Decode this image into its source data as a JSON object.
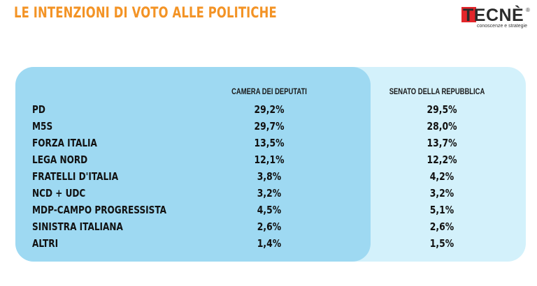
{
  "header": {
    "title": "LE INTENZIONI DI VOTO ALLE POLITICHE"
  },
  "logo": {
    "name": "TECNÈ",
    "tagline": "conoscenze e strategie",
    "mark": "®",
    "accent": "#e3262b"
  },
  "colors": {
    "title": "#f39325",
    "camera_panel": "#9ed9f2",
    "senato_panel": "#d3f1fb"
  },
  "table": {
    "columns": [
      "CAMERA DEI DEPUTATI",
      "SENATO DELLA REPUBBLICA"
    ],
    "rows": [
      {
        "party": "PD",
        "camera": "29,2%",
        "senato": "29,5%"
      },
      {
        "party": "M5S",
        "camera": "29,7%",
        "senato": "28,0%"
      },
      {
        "party": "FORZA ITALIA",
        "camera": "13,5%",
        "senato": "13,7%"
      },
      {
        "party": "LEGA NORD",
        "camera": "12,1%",
        "senato": "12,2%"
      },
      {
        "party": "FRATELLI D'ITALIA",
        "camera": "3,8%",
        "senato": "4,2%"
      },
      {
        "party": "NCD + UDC",
        "camera": "3,2%",
        "senato": "3,2%"
      },
      {
        "party": "MDP-CAMPO PROGRESSISTA",
        "camera": "4,5%",
        "senato": "5,1%"
      },
      {
        "party": "SINISTRA ITALIANA",
        "camera": "2,6%",
        "senato": "2,6%"
      },
      {
        "party": "ALTRI",
        "camera": "1,4%",
        "senato": "1,5%"
      }
    ]
  }
}
